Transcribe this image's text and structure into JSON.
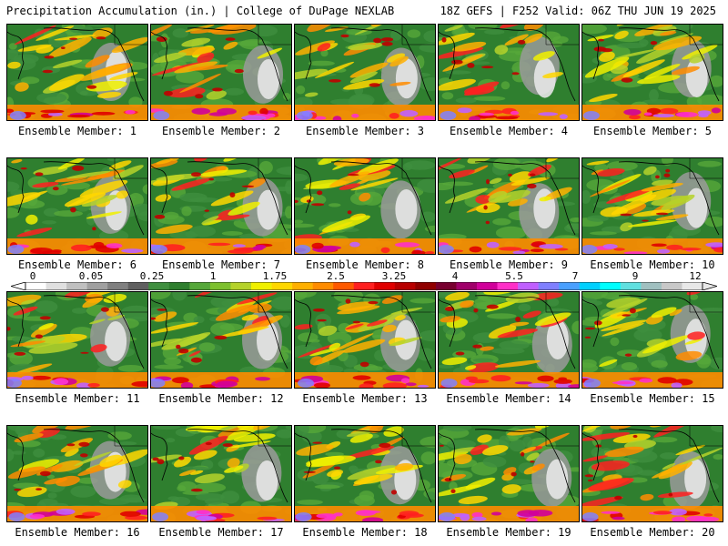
{
  "header": {
    "title": "Precipitation Accumulation (in.) | College of DuPage NEXLAB",
    "run_info": "18Z GEFS | F252 Valid: 06Z THU JUN 19 2025"
  },
  "panels": [
    {
      "label": "Ensemble Member: 1"
    },
    {
      "label": "Ensemble Member: 2"
    },
    {
      "label": "Ensemble Member: 3"
    },
    {
      "label": "Ensemble Member: 4"
    },
    {
      "label": "Ensemble Member: 5"
    },
    {
      "label": "Ensemble Member: 6"
    },
    {
      "label": "Ensemble Member: 7"
    },
    {
      "label": "Ensemble Member: 8"
    },
    {
      "label": "Ensemble Member: 9"
    },
    {
      "label": "Ensemble Member: 10"
    },
    {
      "label": "Ensemble Member: 11"
    },
    {
      "label": "Ensemble Member: 12"
    },
    {
      "label": "Ensemble Member: 13"
    },
    {
      "label": "Ensemble Member: 14"
    },
    {
      "label": "Ensemble Member: 15"
    },
    {
      "label": "Ensemble Member: 16"
    },
    {
      "label": "Ensemble Member: 17"
    },
    {
      "label": "Ensemble Member: 18"
    },
    {
      "label": "Ensemble Member: 19"
    },
    {
      "label": "Ensemble Member: 20"
    }
  ],
  "colorbar": {
    "tick_labels": [
      "0",
      "0.05",
      "0.25",
      "1",
      "1.75",
      "2.5",
      "3.25",
      "4",
      "5.5",
      "7",
      "9",
      "12"
    ],
    "colors": [
      "#ffffff",
      "#e0e0e0",
      "#c0c0c0",
      "#a0a0a0",
      "#808080",
      "#606060",
      "#3f8f3f",
      "#2f7f2f",
      "#56a83a",
      "#7dc02e",
      "#b5d22a",
      "#f0f000",
      "#ffd700",
      "#ffb000",
      "#ff8c00",
      "#ff5a00",
      "#ff2020",
      "#e00000",
      "#b80000",
      "#900000",
      "#780030",
      "#a0006a",
      "#d0009a",
      "#ff30c8",
      "#c060ff",
      "#8080ff",
      "#4aa0ff",
      "#00d0ff",
      "#00ffff",
      "#60e0e0",
      "#a0c0c0",
      "#c8c8c8",
      "#e8e8e8"
    ]
  }
}
